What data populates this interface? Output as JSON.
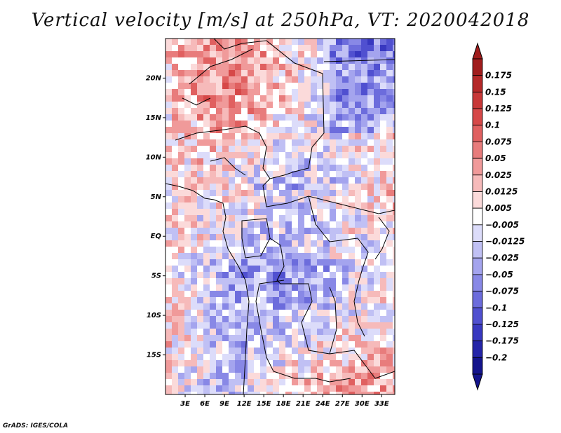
{
  "title": "Vertical velocity [m/s] at 250hPa, VT: 2020042018",
  "credit": "GrADS: IGES/COLA",
  "map": {
    "lat_labels": [
      "20N",
      "15N",
      "10N",
      "5N",
      "EQ",
      "5S",
      "10S",
      "15S"
    ],
    "lat_values": [
      20,
      15,
      10,
      5,
      0,
      -5,
      -10,
      -15
    ],
    "lon_labels": [
      "3E",
      "6E",
      "9E",
      "12E",
      "15E",
      "18E",
      "21E",
      "24E",
      "27E",
      "30E",
      "33E"
    ],
    "lon_values": [
      3,
      6,
      9,
      12,
      15,
      18,
      21,
      24,
      27,
      30,
      33
    ],
    "lon_range": [
      0,
      35
    ],
    "lat_range": [
      -20,
      25
    ],
    "units": "m/s"
  },
  "colorbar": {
    "labels": [
      "0.175",
      "0.15",
      "0.125",
      "0.1",
      "0.075",
      "0.05",
      "0.025",
      "0.0125",
      "0.005",
      "−0.005",
      "−0.0125",
      "−0.025",
      "−0.05",
      "−0.075",
      "−0.1",
      "−0.125",
      "−0.175",
      "−0.2"
    ],
    "colors": [
      "#a01c1c",
      "#b52828",
      "#c83838",
      "#d64848",
      "#e06060",
      "#e87c7c",
      "#f09a9a",
      "#f6baba",
      "#fbdada",
      "#ffffff",
      "#dcdcfa",
      "#c0c0f4",
      "#a4a4ee",
      "#8888e6",
      "#6c6cdc",
      "#5050d0",
      "#3838c0",
      "#2424a8",
      "#14148c"
    ],
    "top_arrow_color": "#a01c1c",
    "bottom_arrow_color": "#14148c"
  }
}
